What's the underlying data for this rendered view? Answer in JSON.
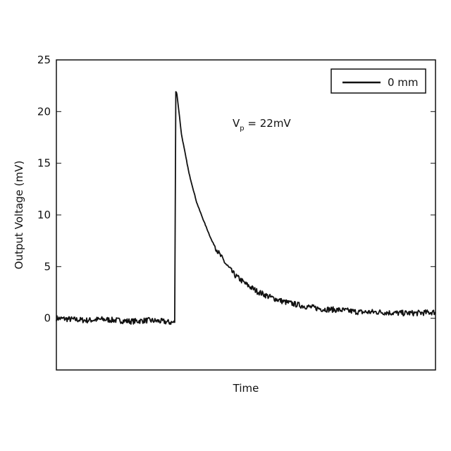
{
  "chart_data": {
    "type": "line",
    "title": "",
    "xlabel": "Time",
    "ylabel": "Output Voltage (mV)",
    "xlim": [
      0,
      1
    ],
    "ylim": [
      -5,
      25
    ],
    "y_ticks": [
      0,
      5,
      10,
      15,
      20,
      25
    ],
    "y_tick_labels": [
      "0",
      "5",
      "10",
      "15",
      "20",
      "25"
    ],
    "x_tick_labels_shown": false,
    "grid": false,
    "legend_position": "top-right",
    "annotation": {
      "text": "V",
      "sub": "p",
      "suffix": " = 22mV"
    },
    "series": [
      {
        "name": "0 mm",
        "color": "#111111",
        "x": [
          0.0,
          0.04,
          0.08,
          0.12,
          0.16,
          0.2,
          0.24,
          0.28,
          0.3,
          0.312,
          0.315,
          0.318,
          0.33,
          0.35,
          0.37,
          0.39,
          0.41,
          0.43,
          0.45,
          0.47,
          0.5,
          0.53,
          0.56,
          0.6,
          0.65,
          0.7,
          0.75,
          0.8,
          0.85,
          0.9,
          0.95,
          1.0
        ],
        "values": [
          0.0,
          -0.1,
          -0.2,
          -0.1,
          -0.2,
          -0.3,
          -0.2,
          -0.3,
          -0.4,
          -0.4,
          22.0,
          21.7,
          17.8,
          14.0,
          11.2,
          9.3,
          7.5,
          6.2,
          5.1,
          4.2,
          3.3,
          2.6,
          2.1,
          1.6,
          1.2,
          0.9,
          0.8,
          0.6,
          0.6,
          0.5,
          0.5,
          0.6
        ]
      }
    ]
  }
}
